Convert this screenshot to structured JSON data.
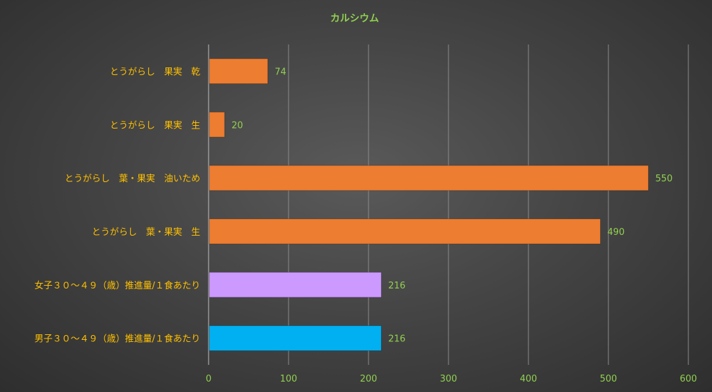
{
  "chart_data": {
    "type": "bar",
    "orientation": "horizontal",
    "title": "カルシウム",
    "xlabel": "",
    "ylabel": "",
    "xlim": [
      0,
      600
    ],
    "ticks": [
      0,
      100,
      200,
      300,
      400,
      500,
      600
    ],
    "grid": true,
    "legend": "none",
    "categories": [
      "とうがらし　果実　乾",
      "とうがらし　果実　生",
      "とうがらし　葉・果実　油いため",
      "とうがらし　葉・果実　生",
      "女子３０～４９（歳）推進量/１食あたり",
      "男子３０～４９（歳）推進量/１食あたり"
    ],
    "values": [
      74,
      20,
      550,
      490,
      216,
      216
    ],
    "colors": [
      "#ed7d31",
      "#ed7d31",
      "#ed7d31",
      "#ed7d31",
      "#cc99ff",
      "#00b0f0"
    ]
  }
}
